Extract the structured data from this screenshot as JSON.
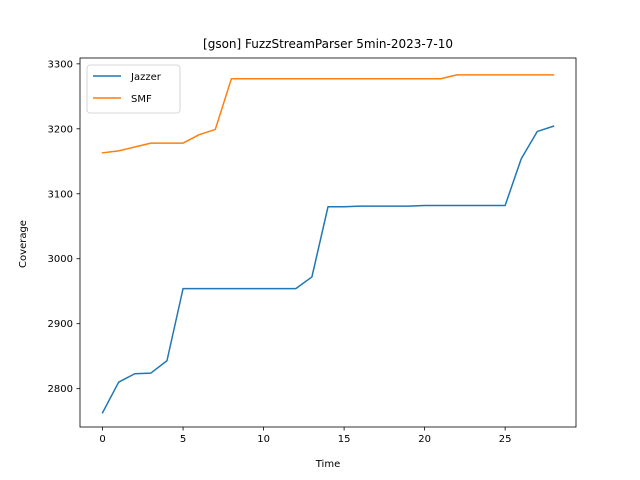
{
  "chart_data": {
    "type": "line",
    "title": "[gson] FuzzStreamParser 5min-2023-7-10",
    "xlabel": "Time",
    "ylabel": "Coverage",
    "xlim": [
      -1.4,
      29.4
    ],
    "ylim": [
      2741,
      3309
    ],
    "xticks": [
      0,
      5,
      10,
      15,
      20,
      25
    ],
    "yticks": [
      2800,
      2900,
      3000,
      3100,
      3200,
      3300
    ],
    "grid": false,
    "legend": "top-left",
    "x": [
      0,
      1,
      2,
      3,
      4,
      5,
      6,
      7,
      8,
      9,
      10,
      11,
      12,
      13,
      14,
      15,
      16,
      17,
      18,
      19,
      20,
      21,
      22,
      23,
      24,
      25,
      26,
      27,
      28
    ],
    "series": [
      {
        "name": "Jazzer",
        "color": "#1f77b4",
        "values": [
          2763,
          2810,
          2823,
          2824,
          2843,
          2954,
          2954,
          2954,
          2954,
          2954,
          2954,
          2954,
          2954,
          2972,
          3080,
          3080,
          3081,
          3081,
          3081,
          3081,
          3082,
          3082,
          3082,
          3082,
          3082,
          3082,
          3154,
          3196,
          3204
        ]
      },
      {
        "name": "SMF",
        "color": "#ff7f0e",
        "values": [
          3163,
          3166,
          3172,
          3178,
          3178,
          3178,
          3191,
          3199,
          3277,
          3277,
          3277,
          3277,
          3277,
          3277,
          3277,
          3277,
          3277,
          3277,
          3277,
          3277,
          3277,
          3277,
          3283,
          3283,
          3283,
          3283,
          3283,
          3283,
          3283
        ]
      }
    ]
  }
}
